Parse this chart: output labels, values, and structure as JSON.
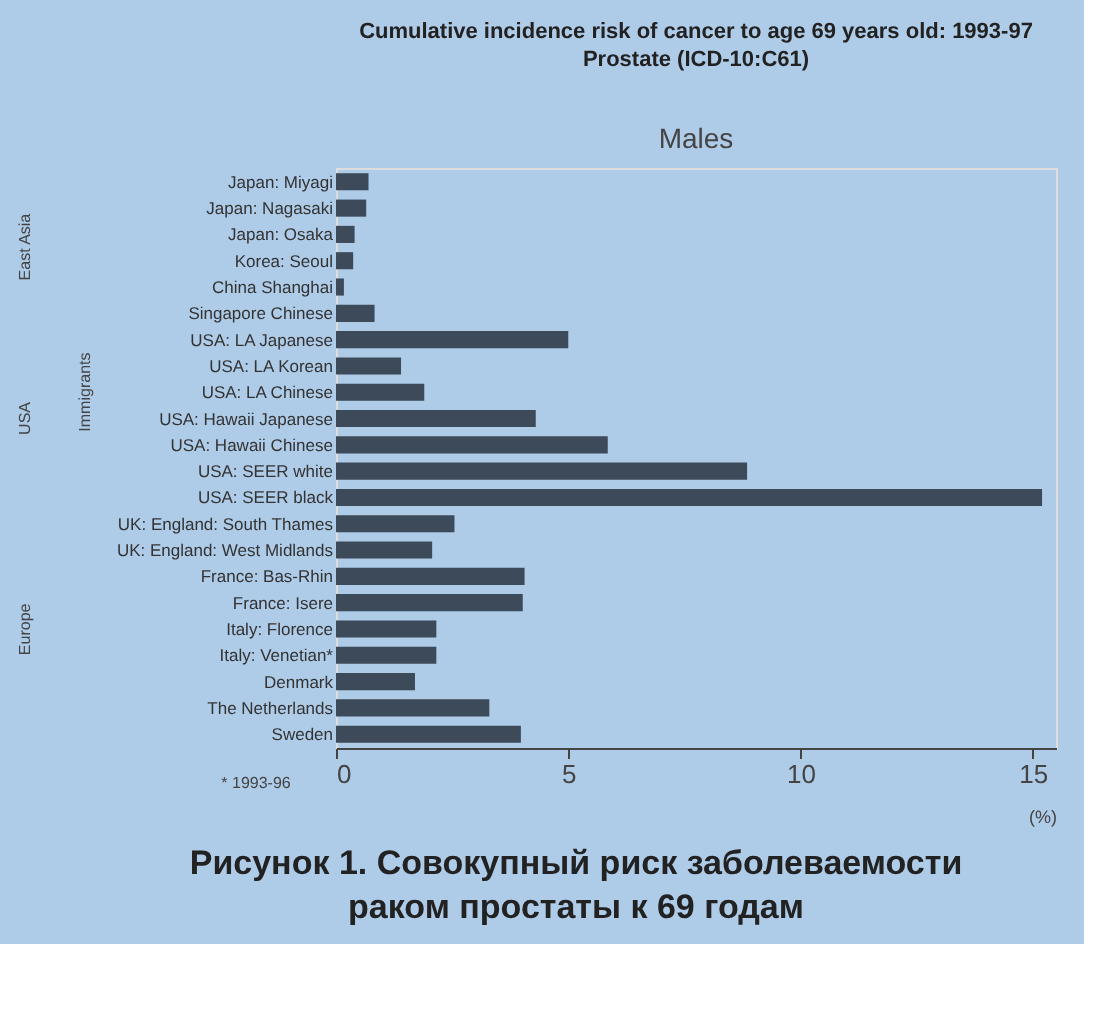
{
  "chart_data": {
    "type": "bar",
    "orientation": "horizontal",
    "title": "Cumulative incidence risk of cancer to age 69 years old: 1993-97",
    "subtitle": "Prostate    (ICD-10:C61)",
    "xlabel": "(%)",
    "categories": [
      "Japan: Miyagi",
      "Japan: Nagasaki",
      "Japan: Osaka",
      "Korea: Seoul",
      "China Shanghai",
      "Singapore Chinese",
      "USA: LA Japanese",
      "USA: LA Korean",
      "USA: LA Chinese",
      "USA: Hawaii Japanese",
      "USA: Hawaii Chinese",
      "USA: SEER white",
      "USA: SEER black",
      "UK: England: South Thames",
      "UK: England: West Midlands",
      "France: Bas-Rhin",
      "France: Isere",
      "Italy: Florence",
      "Italy: Venetian*",
      "Denmark",
      "The Netherlands",
      "Sweden"
    ],
    "values": [
      0.7,
      0.65,
      0.4,
      0.37,
      0.17,
      0.83,
      5.0,
      1.4,
      1.9,
      4.3,
      5.85,
      8.85,
      15.2,
      2.55,
      2.07,
      4.06,
      4.02,
      2.16,
      2.16,
      1.7,
      3.3,
      3.98
    ],
    "color": "#3d4a5a",
    "xlim": [
      0,
      15.5
    ],
    "xticks": [
      0,
      5,
      10,
      15
    ],
    "grid": false,
    "annotations": [
      "Males",
      "East Asia",
      "Immigrants",
      "USA",
      "Europe",
      "* 1993-96",
      "Рисунок 1. Совокупный риск заболеваемости",
      "раком простаты к 69 годам"
    ]
  }
}
